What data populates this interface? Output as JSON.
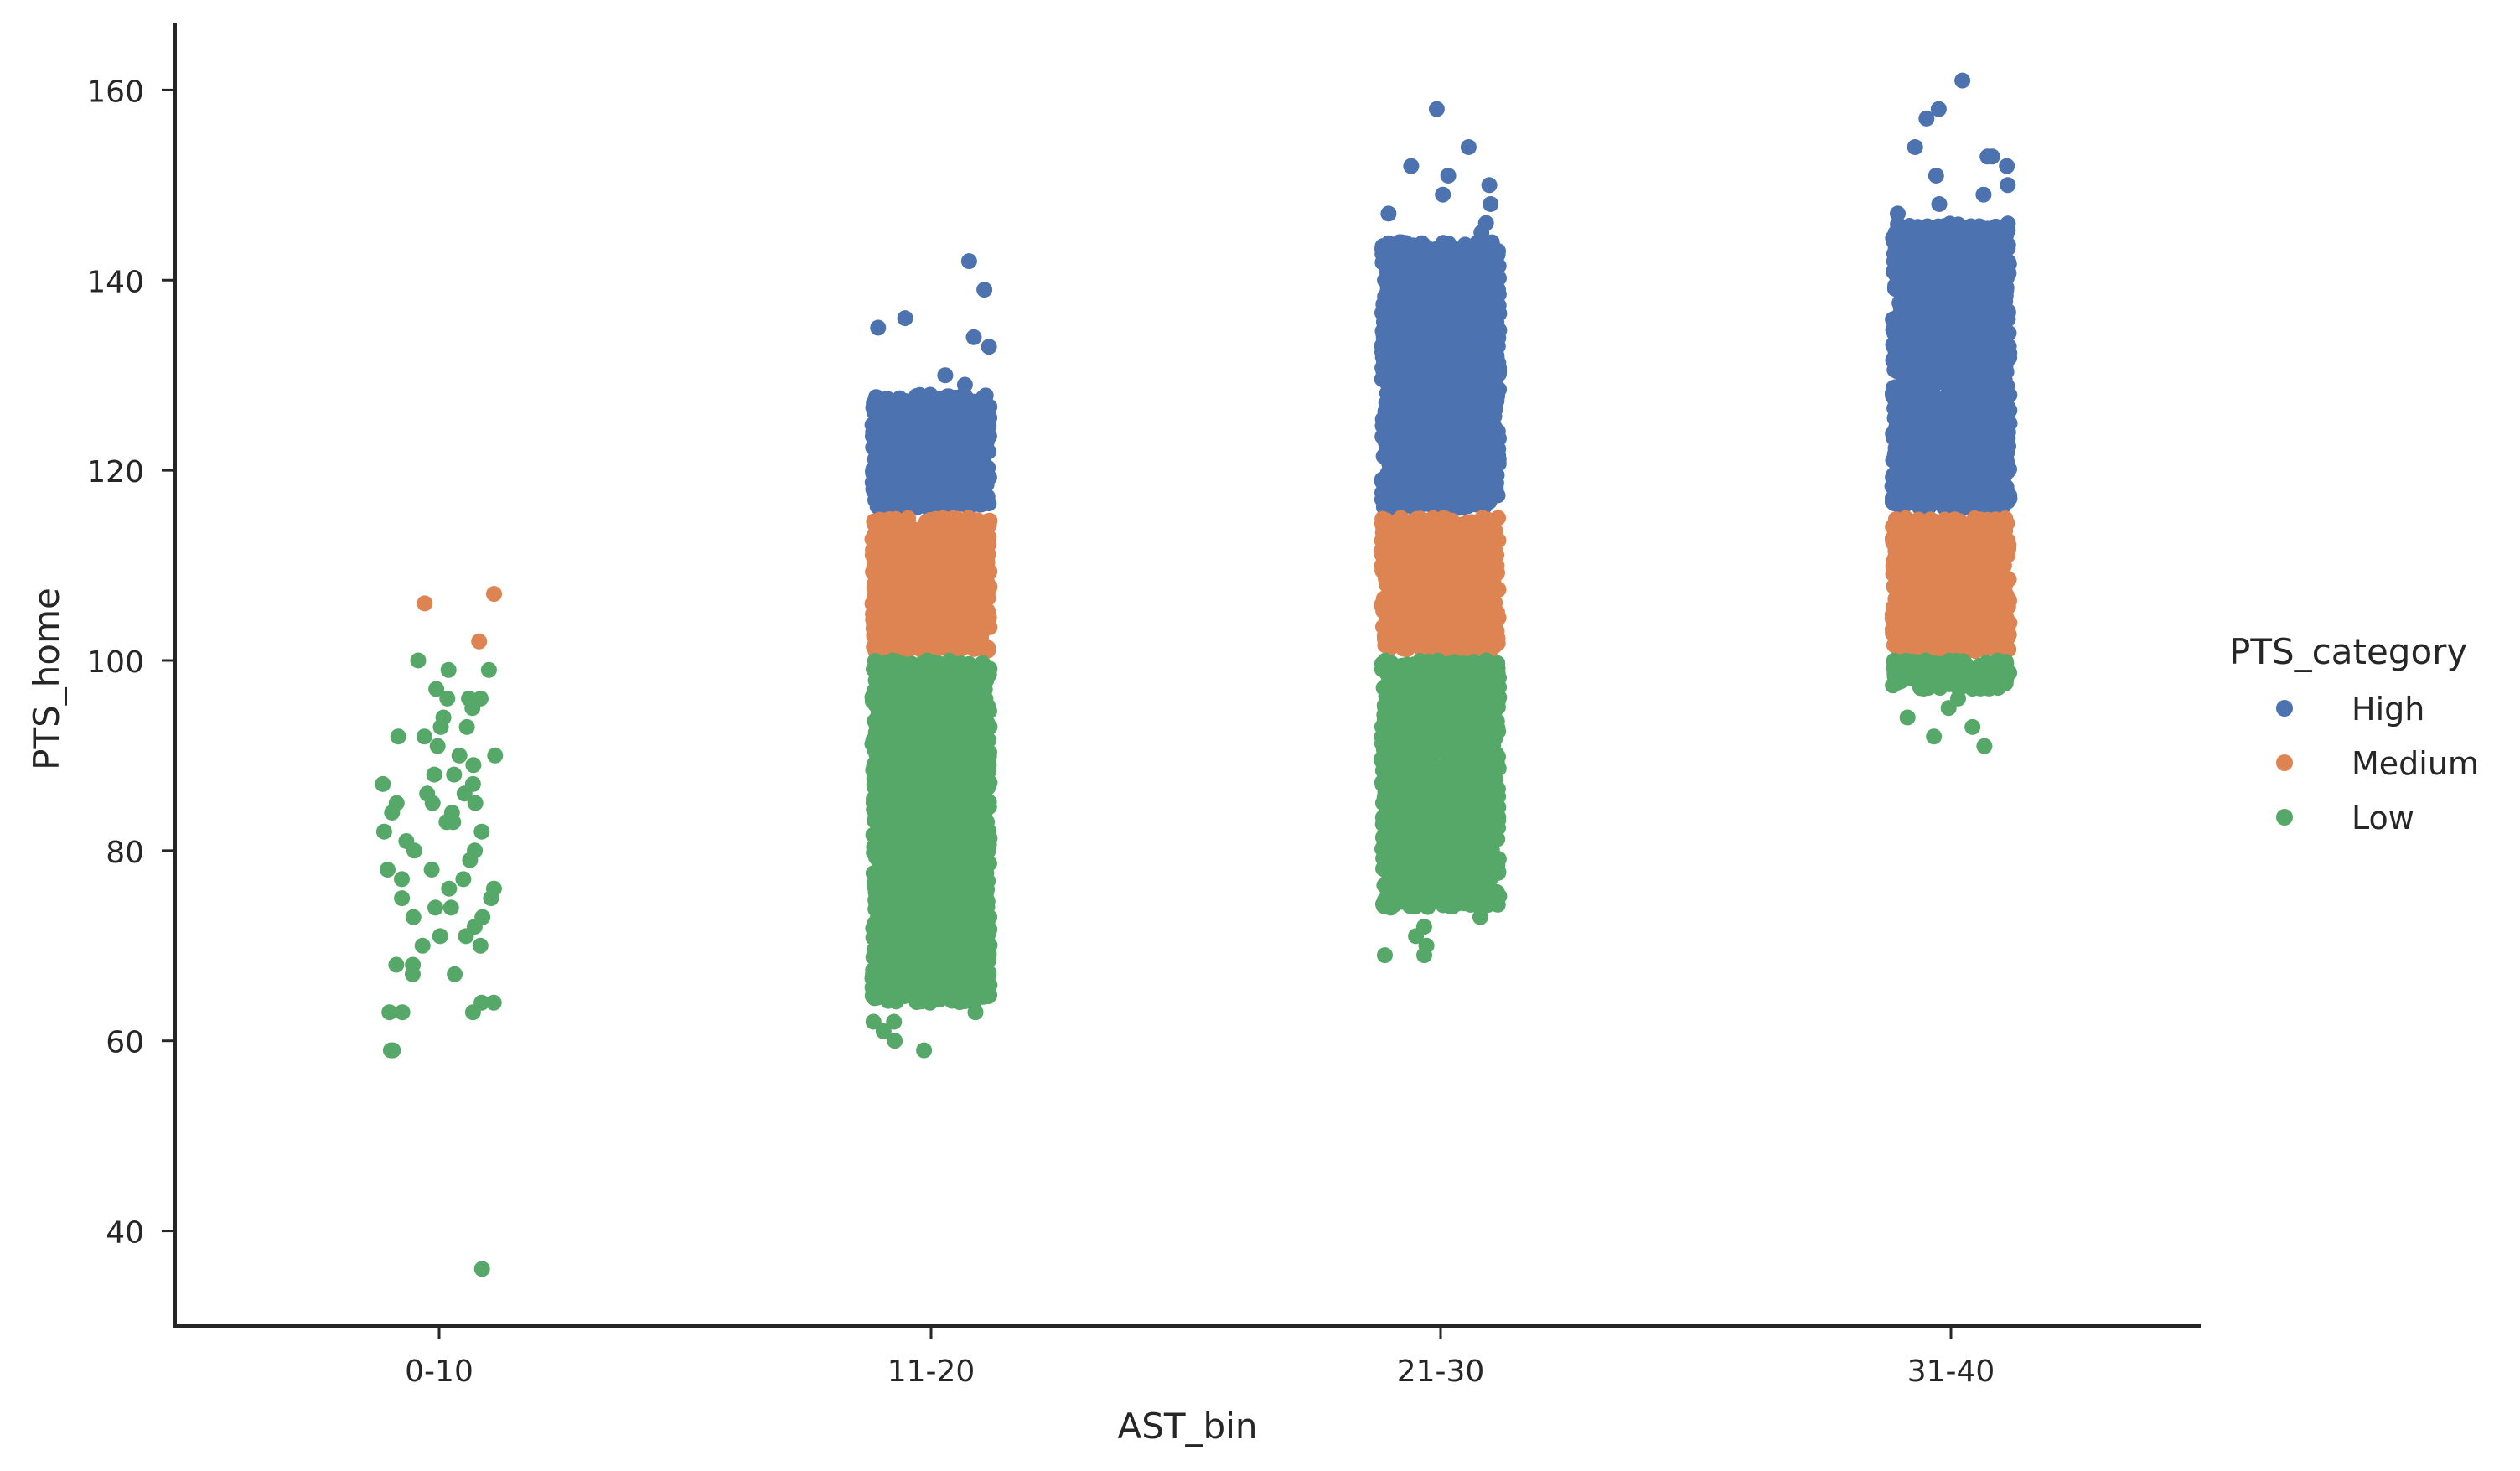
{
  "chart_data": {
    "type": "scatter",
    "subtype": "strip",
    "title": "",
    "xlabel": "AST_bin",
    "ylabel": "PTS_home",
    "categories": [
      "0-10",
      "11-20",
      "21-30",
      "31-40"
    ],
    "ylim": [
      30,
      167
    ],
    "yticks": [
      40,
      60,
      80,
      100,
      120,
      140,
      160
    ],
    "grid": false,
    "legend": {
      "title": "PTS_category",
      "placement": "right",
      "entries": [
        "High",
        "Medium",
        "Low"
      ]
    },
    "series": [
      {
        "name": "High",
        "color": "#4c72b0",
        "points": [
          {
            "category": "11-20",
            "y": 142
          },
          {
            "category": "11-20",
            "y": 139
          },
          {
            "category": "11-20",
            "y": 136
          },
          {
            "category": "11-20",
            "y": 135
          },
          {
            "category": "11-20",
            "y": 134
          },
          {
            "category": "11-20",
            "y": 133
          },
          {
            "category": "11-20",
            "y": 130
          },
          {
            "category": "11-20",
            "y": 129
          },
          {
            "category": "21-30",
            "y": 158
          },
          {
            "category": "21-30",
            "y": 154
          },
          {
            "category": "21-30",
            "y": 152
          },
          {
            "category": "21-30",
            "y": 151
          },
          {
            "category": "21-30",
            "y": 150
          },
          {
            "category": "21-30",
            "y": 149
          },
          {
            "category": "21-30",
            "y": 148
          },
          {
            "category": "21-30",
            "y": 147
          },
          {
            "category": "21-30",
            "y": 146
          },
          {
            "category": "21-30",
            "y": 145
          },
          {
            "category": "31-40",
            "y": 161
          },
          {
            "category": "31-40",
            "y": 158
          },
          {
            "category": "31-40",
            "y": 157
          },
          {
            "category": "31-40",
            "y": 154
          },
          {
            "category": "31-40",
            "y": 153
          },
          {
            "category": "31-40",
            "y": 153
          },
          {
            "category": "31-40",
            "y": 152
          },
          {
            "category": "31-40",
            "y": 151
          },
          {
            "category": "31-40",
            "y": 150
          },
          {
            "category": "31-40",
            "y": 149
          },
          {
            "category": "31-40",
            "y": 148
          },
          {
            "category": "31-40",
            "y": 147
          }
        ],
        "dense_ranges": [
          {
            "category": "11-20",
            "y_min": 116,
            "y_max": 128
          },
          {
            "category": "21-30",
            "y_min": 116,
            "y_max": 144
          },
          {
            "category": "31-40",
            "y_min": 116,
            "y_max": 146
          }
        ]
      },
      {
        "name": "Medium",
        "color": "#dd8452",
        "points": [
          {
            "category": "0-10",
            "y": 107
          },
          {
            "category": "0-10",
            "y": 106
          },
          {
            "category": "0-10",
            "y": 102
          }
        ],
        "dense_ranges": [
          {
            "category": "11-20",
            "y_min": 101,
            "y_max": 115
          },
          {
            "category": "21-30",
            "y_min": 101,
            "y_max": 115
          },
          {
            "category": "31-40",
            "y_min": 101,
            "y_max": 115
          }
        ]
      },
      {
        "name": "Low",
        "color": "#55a868",
        "points": [
          {
            "category": "0-10",
            "y": 100
          },
          {
            "category": "0-10",
            "y": 99
          },
          {
            "category": "0-10",
            "y": 99
          },
          {
            "category": "0-10",
            "y": 97
          },
          {
            "category": "0-10",
            "y": 96
          },
          {
            "category": "0-10",
            "y": 96
          },
          {
            "category": "0-10",
            "y": 96
          },
          {
            "category": "0-10",
            "y": 95
          },
          {
            "category": "0-10",
            "y": 94
          },
          {
            "category": "0-10",
            "y": 93
          },
          {
            "category": "0-10",
            "y": 93
          },
          {
            "category": "0-10",
            "y": 92
          },
          {
            "category": "0-10",
            "y": 92
          },
          {
            "category": "0-10",
            "y": 91
          },
          {
            "category": "0-10",
            "y": 90
          },
          {
            "category": "0-10",
            "y": 90
          },
          {
            "category": "0-10",
            "y": 89
          },
          {
            "category": "0-10",
            "y": 88
          },
          {
            "category": "0-10",
            "y": 88
          },
          {
            "category": "0-10",
            "y": 87
          },
          {
            "category": "0-10",
            "y": 87
          },
          {
            "category": "0-10",
            "y": 86
          },
          {
            "category": "0-10",
            "y": 86
          },
          {
            "category": "0-10",
            "y": 85
          },
          {
            "category": "0-10",
            "y": 85
          },
          {
            "category": "0-10",
            "y": 85
          },
          {
            "category": "0-10",
            "y": 84
          },
          {
            "category": "0-10",
            "y": 84
          },
          {
            "category": "0-10",
            "y": 83
          },
          {
            "category": "0-10",
            "y": 83
          },
          {
            "category": "0-10",
            "y": 82
          },
          {
            "category": "0-10",
            "y": 82
          },
          {
            "category": "0-10",
            "y": 81
          },
          {
            "category": "0-10",
            "y": 80
          },
          {
            "category": "0-10",
            "y": 80
          },
          {
            "category": "0-10",
            "y": 79
          },
          {
            "category": "0-10",
            "y": 78
          },
          {
            "category": "0-10",
            "y": 78
          },
          {
            "category": "0-10",
            "y": 77
          },
          {
            "category": "0-10",
            "y": 77
          },
          {
            "category": "0-10",
            "y": 76
          },
          {
            "category": "0-10",
            "y": 76
          },
          {
            "category": "0-10",
            "y": 75
          },
          {
            "category": "0-10",
            "y": 75
          },
          {
            "category": "0-10",
            "y": 74
          },
          {
            "category": "0-10",
            "y": 74
          },
          {
            "category": "0-10",
            "y": 73
          },
          {
            "category": "0-10",
            "y": 73
          },
          {
            "category": "0-10",
            "y": 72
          },
          {
            "category": "0-10",
            "y": 71
          },
          {
            "category": "0-10",
            "y": 71
          },
          {
            "category": "0-10",
            "y": 70
          },
          {
            "category": "0-10",
            "y": 70
          },
          {
            "category": "0-10",
            "y": 68
          },
          {
            "category": "0-10",
            "y": 68
          },
          {
            "category": "0-10",
            "y": 67
          },
          {
            "category": "0-10",
            "y": 67
          },
          {
            "category": "0-10",
            "y": 64
          },
          {
            "category": "0-10",
            "y": 64
          },
          {
            "category": "0-10",
            "y": 63
          },
          {
            "category": "0-10",
            "y": 63
          },
          {
            "category": "0-10",
            "y": 63
          },
          {
            "category": "0-10",
            "y": 59
          },
          {
            "category": "0-10",
            "y": 59
          },
          {
            "category": "0-10",
            "y": 36
          },
          {
            "category": "11-20",
            "y": 62
          },
          {
            "category": "11-20",
            "y": 62
          },
          {
            "category": "11-20",
            "y": 61
          },
          {
            "category": "11-20",
            "y": 60
          },
          {
            "category": "11-20",
            "y": 59
          },
          {
            "category": "11-20",
            "y": 63
          },
          {
            "category": "21-30",
            "y": 69
          },
          {
            "category": "21-30",
            "y": 69
          },
          {
            "category": "21-30",
            "y": 70
          },
          {
            "category": "21-30",
            "y": 71
          },
          {
            "category": "21-30",
            "y": 72
          },
          {
            "category": "21-30",
            "y": 73
          },
          {
            "category": "31-40",
            "y": 91
          },
          {
            "category": "31-40",
            "y": 92
          },
          {
            "category": "31-40",
            "y": 93
          },
          {
            "category": "31-40",
            "y": 94
          },
          {
            "category": "31-40",
            "y": 95
          },
          {
            "category": "31-40",
            "y": 96
          }
        ],
        "dense_ranges": [
          {
            "category": "11-20",
            "y_min": 64,
            "y_max": 100
          },
          {
            "category": "21-30",
            "y_min": 74,
            "y_max": 100
          },
          {
            "category": "31-40",
            "y_min": 97,
            "y_max": 100
          }
        ]
      }
    ]
  }
}
